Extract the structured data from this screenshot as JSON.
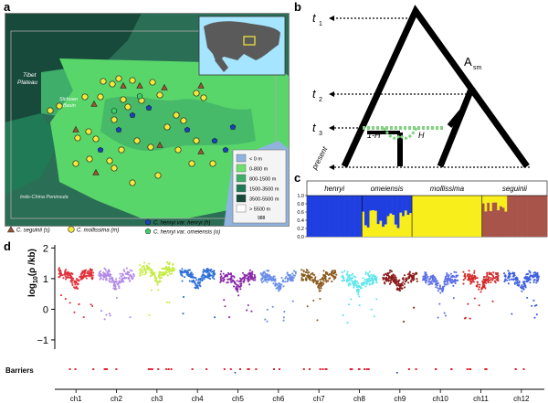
{
  "panel_labels": {
    "a": "a",
    "b": "b",
    "c": "c",
    "d": "d"
  },
  "map": {
    "region_labels": {
      "tibet_line1": "Tibet",
      "tibet_line2": "Plateau",
      "sichuan_line1": "Sichuan",
      "sichuan_line2": "Basin",
      "indochina": "Indo-China Peninsula"
    },
    "elevation_legend": {
      "items": [
        {
          "label": "< 0 m",
          "color": "#8fb3e0"
        },
        {
          "label": "0-800 m",
          "color": "#6ee06e"
        },
        {
          "label": "800-1500 m",
          "color": "#3fae6a"
        },
        {
          "label": "1500-3500 m",
          "color": "#1f7a55"
        },
        {
          "label": "3500-5500 m",
          "color": "#174a3a"
        },
        {
          "label": "> 5500 m",
          "color": "#ffffff"
        }
      ],
      "scale": "988"
    },
    "species_legend": [
      {
        "label": "C. seguinii (s)",
        "marker": "triangle",
        "color": "#a0522d"
      },
      {
        "label": "C. mollissima (m)",
        "marker": "circle",
        "color": "#f7e93c"
      },
      {
        "label": "C. henryi var. henryi (h)",
        "marker": "pentagon",
        "color": "#1a3fbf"
      },
      {
        "label": "C. henryi var. omeiensis (o)",
        "marker": "pentagon",
        "color": "#3fcf6a"
      }
    ]
  },
  "tree": {
    "time_labels": [
      "t",
      "t",
      "t"
    ],
    "time_subs": [
      "1",
      "2",
      "3"
    ],
    "present_label": "present",
    "asm_label": "A",
    "asm_sub": "sm",
    "h_left": "1-H",
    "h_right": "H"
  },
  "structure": {
    "groups": [
      "henryi",
      "omeiensis",
      "mollissima",
      "seguinii"
    ],
    "yticks": [
      "1.0",
      "0.8",
      "0.6",
      "0.4",
      "0.2",
      "0.0"
    ],
    "colors": {
      "blue": "#1f3fe0",
      "yellow": "#f7ee1c",
      "brown": "#a8544a"
    }
  },
  "chart_data": {
    "type": "scatter",
    "ylabel": "log10(ρ /kb)",
    "ylabel_main": "log",
    "ylabel_sub": "10",
    "ylabel_tail": "(ρ /kb)",
    "yticks": [
      "2",
      "1",
      "0",
      "−1"
    ],
    "ylim": [
      -1.3,
      2.1
    ],
    "barriers_label": "Barriers",
    "series": [
      {
        "name": "ch1",
        "color": "#e0303a",
        "median": 1.15
      },
      {
        "name": "ch2",
        "color": "#b38ae6",
        "median": 1.1
      },
      {
        "name": "ch3",
        "color": "#c6ec45",
        "median": 1.3
      },
      {
        "name": "ch4",
        "color": "#2e6fd9",
        "median": 1.15
      },
      {
        "name": "ch5",
        "color": "#8a2aa8",
        "median": 1.05
      },
      {
        "name": "ch6",
        "color": "#6a8de8",
        "median": 1.05
      },
      {
        "name": "ch7",
        "color": "#8a5a1c",
        "median": 1.1
      },
      {
        "name": "ch8",
        "color": "#5de6ec",
        "median": 1.0
      },
      {
        "name": "ch9",
        "color": "#8a1c1c",
        "median": 1.05
      },
      {
        "name": "ch10",
        "color": "#5b6fe8",
        "median": 1.0
      },
      {
        "name": "ch11",
        "color": "#d42a2a",
        "median": 1.05
      },
      {
        "name": "ch12",
        "color": "#4060e0",
        "median": 1.05
      }
    ]
  }
}
